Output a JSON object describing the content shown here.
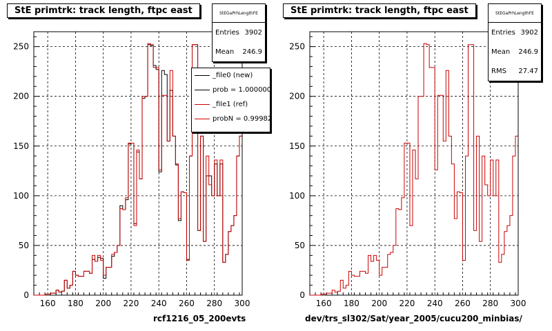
{
  "pads": [
    {
      "title": "StE primtrk: track length, ftpc east",
      "xlabel": "rcf1216_05_200evts",
      "stats": {
        "name": "StEGaPrhLengthFE",
        "rows": [
          {
            "label": "Entries",
            "value": "3902"
          },
          {
            "label": "Mean",
            "value": "246.9"
          }
        ]
      },
      "legend": [
        {
          "label": "_file0 (new)",
          "color": "#000000"
        },
        {
          "label": "prob = 1.000000",
          "color": "#000000"
        },
        {
          "label": "_file1 (ref)",
          "color": "#cc0000"
        },
        {
          "label": "probN = 0.99982",
          "color": "#cc0000"
        }
      ]
    },
    {
      "title": "StE primtrk: track length, ftpc east",
      "xlabel": "dev/trs_sl302/Sat/year_2005/cucu200_minbias/",
      "stats": {
        "name": "StEGaPrhLengthFE",
        "rows": [
          {
            "label": "Entries",
            "value": "3902"
          },
          {
            "label": "Mean",
            "value": "246.9"
          },
          {
            "label": "RMS",
            "value": "27.47"
          }
        ]
      }
    }
  ],
  "chart_data": [
    {
      "type": "histogram",
      "title": "StE primtrk: track length, ftpc east",
      "xlabel": "rcf1216_05_200evts",
      "xlim": [
        150,
        300
      ],
      "ylim": [
        0,
        265
      ],
      "xticks": [
        160,
        180,
        200,
        220,
        240,
        260,
        280,
        300
      ],
      "yticks": [
        0,
        50,
        100,
        150,
        200,
        250
      ],
      "grid": true,
      "bin_edges_start": 150,
      "bin_width": 2,
      "series": [
        {
          "name": "_file0 (new)",
          "color": "#000000",
          "values": [
            0,
            0,
            0,
            0,
            1,
            1,
            2,
            2,
            5,
            3,
            4,
            15,
            7,
            10,
            24,
            20,
            19,
            19,
            24,
            24,
            22,
            36,
            34,
            38,
            37,
            17,
            28,
            28,
            39,
            43,
            50,
            90,
            86,
            96,
            152,
            153,
            72,
            144,
            117,
            198,
            200,
            252,
            251,
            231,
            227,
            124,
            226,
            222,
            155,
            206,
            160,
            131,
            75,
            104,
            103,
            36,
            140,
            252,
            252,
            65,
            160,
            54,
            120,
            120,
            100,
            132,
            100,
            132,
            33,
            41,
            64,
            70,
            80,
            140,
            160
          ]
        },
        {
          "name": "_file1 (ref)",
          "color": "#cc0000",
          "values": [
            0,
            0,
            0,
            0,
            1,
            1,
            2,
            2,
            5,
            3,
            4,
            15,
            7,
            10,
            24,
            20,
            19,
            19,
            24,
            24,
            22,
            40,
            34,
            40,
            35,
            20,
            28,
            28,
            41,
            43,
            50,
            87,
            86,
            98,
            153,
            153,
            70,
            146,
            117,
            200,
            200,
            253,
            252,
            229,
            229,
            126,
            201,
            201,
            155,
            226,
            160,
            132,
            77,
            104,
            103,
            35,
            140,
            252,
            252,
            65,
            160,
            54,
            140,
            111,
            100,
            136,
            100,
            136,
            33,
            41,
            64,
            70,
            80,
            140,
            160
          ]
        }
      ]
    },
    {
      "type": "histogram",
      "title": "StE primtrk: track length, ftpc east",
      "xlabel": "dev/trs_sl302/Sat/year_2005/cucu200_minbias/",
      "xlim": [
        150,
        300
      ],
      "ylim": [
        0,
        265
      ],
      "xticks": [
        160,
        180,
        200,
        220,
        240,
        260,
        280,
        300
      ],
      "yticks": [
        0,
        50,
        100,
        150,
        200,
        250
      ],
      "grid": true,
      "bin_edges_start": 150,
      "bin_width": 2,
      "series": [
        {
          "name": "_file1 (ref)",
          "color": "#cc0000",
          "values": [
            0,
            0,
            0,
            0,
            1,
            1,
            2,
            2,
            5,
            3,
            4,
            15,
            7,
            10,
            24,
            20,
            19,
            19,
            24,
            24,
            22,
            40,
            34,
            40,
            35,
            20,
            28,
            28,
            41,
            43,
            50,
            87,
            86,
            98,
            153,
            153,
            70,
            146,
            117,
            200,
            200,
            253,
            252,
            229,
            229,
            126,
            201,
            201,
            155,
            226,
            160,
            132,
            77,
            104,
            103,
            35,
            140,
            252,
            252,
            65,
            160,
            54,
            140,
            111,
            100,
            136,
            100,
            136,
            33,
            41,
            64,
            70,
            80,
            140,
            160
          ]
        }
      ]
    }
  ]
}
